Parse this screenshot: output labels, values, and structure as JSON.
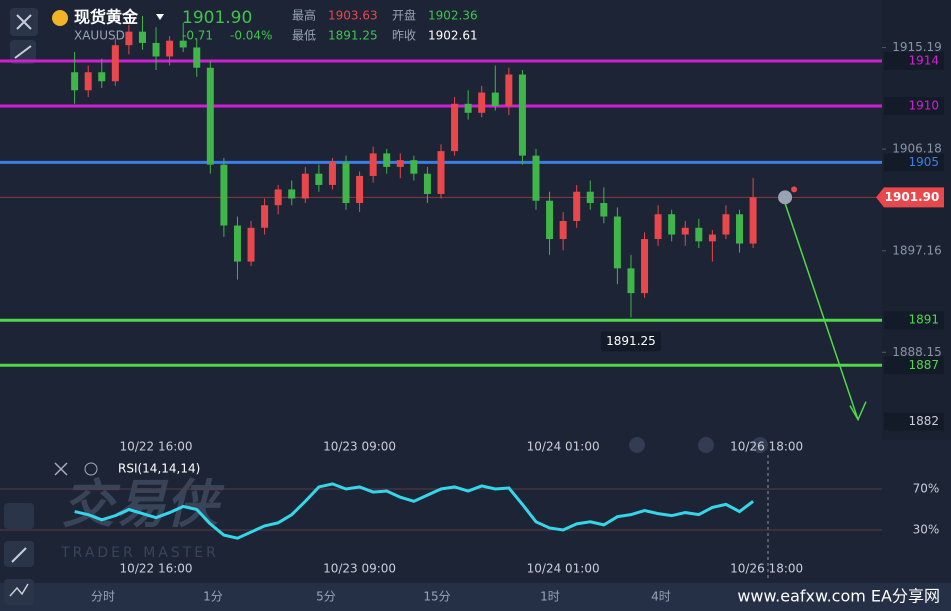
{
  "header": {
    "name": "现货黄金",
    "symbol": "XAUUSD",
    "price": "1901.90",
    "change": "-0.71",
    "change_pct": "-0.04%",
    "high_label": "最高",
    "high": "1903.63",
    "open_label": "开盘",
    "open": "1902.36",
    "low_label": "最低",
    "low": "1891.25",
    "prev_label": "昨收",
    "prev": "1902.61"
  },
  "chart_data": [
    {
      "type": "candlestick",
      "up_color": "#e8474b",
      "down_color": "#3fb54a",
      "xlim": [
        -5.5,
        59.5
      ],
      "ylim": [
        1880.37,
        1919.41
      ],
      "xticks": [
        {
          "value": 6,
          "label": "10/22 16:00"
        },
        {
          "value": 21,
          "label": "10/23 09:00"
        },
        {
          "value": 36,
          "label": "10/24 01:00"
        },
        {
          "value": 51,
          "label": "10/26 18:00"
        }
      ],
      "yticks": [
        1915.19,
        1906.18,
        1897.16,
        1888.15
      ],
      "levels": [
        {
          "value": 1914,
          "color": "#d21fd6"
        },
        {
          "value": 1910,
          "color": "#d21fd6"
        },
        {
          "value": 1905,
          "color": "#3d7ee6"
        },
        {
          "value": 1891,
          "color": "#4fd84a"
        },
        {
          "value": 1887,
          "color": "#4fd84a"
        }
      ],
      "last": {
        "value": 1901.9,
        "label": "1901.90"
      },
      "low_mark": 1891.25,
      "target": 1882,
      "ohlc": [
        [
          1913.0,
          1914.8,
          1910.2,
          1911.4
        ],
        [
          1911.4,
          1913.6,
          1910.8,
          1913.0
        ],
        [
          1913.0,
          1914.2,
          1911.6,
          1912.2
        ],
        [
          1912.2,
          1916.0,
          1911.8,
          1915.4
        ],
        [
          1915.4,
          1917.2,
          1914.6,
          1916.6
        ],
        [
          1916.6,
          1918.0,
          1915.0,
          1915.6
        ],
        [
          1915.6,
          1917.0,
          1913.2,
          1914.4
        ],
        [
          1914.4,
          1916.2,
          1913.6,
          1915.8
        ],
        [
          1915.8,
          1917.4,
          1914.8,
          1915.2
        ],
        [
          1915.2,
          1916.0,
          1912.6,
          1913.4
        ],
        [
          1913.4,
          1914.0,
          1904.0,
          1904.8
        ],
        [
          1904.8,
          1905.4,
          1898.4,
          1899.4
        ],
        [
          1899.4,
          1900.2,
          1894.6,
          1896.2
        ],
        [
          1896.2,
          1899.8,
          1895.8,
          1899.2
        ],
        [
          1899.2,
          1901.8,
          1898.6,
          1901.2
        ],
        [
          1901.2,
          1903.0,
          1900.4,
          1902.6
        ],
        [
          1902.6,
          1903.4,
          1901.2,
          1901.8
        ],
        [
          1901.8,
          1904.6,
          1901.4,
          1904.0
        ],
        [
          1904.0,
          1904.8,
          1902.4,
          1903.0
        ],
        [
          1903.0,
          1905.4,
          1902.6,
          1905.0
        ],
        [
          1905.0,
          1905.6,
          1900.8,
          1901.4
        ],
        [
          1901.4,
          1904.2,
          1900.6,
          1903.8
        ],
        [
          1903.8,
          1906.4,
          1903.2,
          1905.8
        ],
        [
          1905.8,
          1906.2,
          1904.0,
          1904.6
        ],
        [
          1904.6,
          1905.8,
          1903.6,
          1905.2
        ],
        [
          1905.2,
          1905.6,
          1903.4,
          1904.0
        ],
        [
          1904.0,
          1904.6,
          1901.4,
          1902.2
        ],
        [
          1902.2,
          1906.6,
          1901.8,
          1906.0
        ],
        [
          1906.0,
          1910.8,
          1905.6,
          1910.2
        ],
        [
          1910.2,
          1911.4,
          1908.8,
          1909.4
        ],
        [
          1909.4,
          1911.8,
          1909.0,
          1911.2
        ],
        [
          1911.2,
          1913.6,
          1909.6,
          1910.0
        ],
        [
          1910.0,
          1913.4,
          1909.2,
          1912.8
        ],
        [
          1912.8,
          1913.2,
          1904.8,
          1905.6
        ],
        [
          1905.6,
          1906.2,
          1900.8,
          1901.6
        ],
        [
          1901.6,
          1902.4,
          1896.8,
          1898.2
        ],
        [
          1898.2,
          1900.6,
          1897.2,
          1899.8
        ],
        [
          1899.8,
          1903.0,
          1899.2,
          1902.4
        ],
        [
          1902.4,
          1903.4,
          1900.8,
          1901.4
        ],
        [
          1901.4,
          1902.8,
          1899.6,
          1900.2
        ],
        [
          1900.2,
          1901.0,
          1894.2,
          1895.6
        ],
        [
          1895.6,
          1896.8,
          1891.25,
          1893.4
        ],
        [
          1893.4,
          1898.8,
          1893.0,
          1898.2
        ],
        [
          1898.2,
          1901.2,
          1897.6,
          1900.4
        ],
        [
          1900.4,
          1900.8,
          1898.0,
          1898.6
        ],
        [
          1898.6,
          1899.8,
          1897.6,
          1899.2
        ],
        [
          1899.2,
          1900.0,
          1897.4,
          1898.0
        ],
        [
          1898.0,
          1899.0,
          1896.2,
          1898.6
        ],
        [
          1898.6,
          1901.2,
          1898.2,
          1900.4
        ],
        [
          1900.4,
          1900.8,
          1897.0,
          1897.8
        ],
        [
          1897.8,
          1903.63,
          1897.4,
          1901.9
        ]
      ]
    },
    {
      "type": "line",
      "title": "RSI(14,14,14)",
      "color": "#35d6ea",
      "xlim": [
        -5.5,
        59.5
      ],
      "ylim": [
        -13.9,
        98.3
      ],
      "yticks": [
        {
          "value": 70,
          "label": "70%"
        },
        {
          "value": 30,
          "label": "30%"
        }
      ],
      "values": [
        48,
        45,
        40,
        44,
        50,
        46,
        42,
        47,
        53,
        50,
        36,
        25,
        22,
        28,
        34,
        37,
        45,
        58,
        72,
        75,
        70,
        72,
        67,
        68,
        62,
        58,
        64,
        70,
        72,
        68,
        73,
        70,
        71,
        55,
        38,
        32,
        30,
        36,
        38,
        35,
        43,
        45,
        49,
        46,
        44,
        47,
        45,
        52,
        55,
        48,
        58
      ]
    }
  ],
  "watermark": {
    "title": "交易侠",
    "subtitle": "TRADER MASTER"
  },
  "toolbar": {
    "timeframes": [
      "分时",
      "1分",
      "5分",
      "15分",
      "1时",
      "4时"
    ]
  },
  "footer": "www.eafxw.com  EA分享网"
}
